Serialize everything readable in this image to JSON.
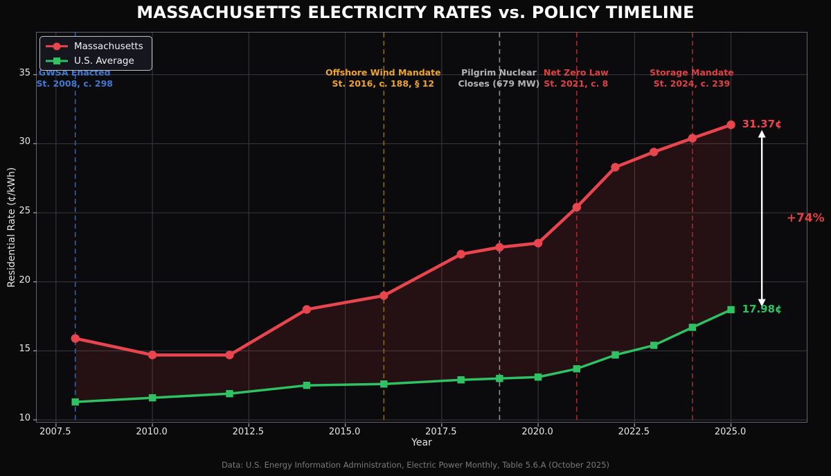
{
  "title": "MASSACHUSETTS ELECTRICITY RATES vs. POLICY TIMELINE",
  "footer": "Data: U.S. Energy Information Administration, Electric Power Monthly, Table 5.6.A (October 2025)",
  "colors": {
    "background": "#0a0a0b",
    "grid": "#3b3b41",
    "spine": "#63636b",
    "tick": "#9a9aa0",
    "massachusetts_red": "#e8464f",
    "us_average_green": "#2fc163",
    "gwsa_blue": "#3d79cf",
    "offshore_orange": "#eda42d",
    "pilgrim_gray": "#b3b3b3",
    "netzero_red": "#dd4242"
  },
  "legend": {
    "items": [
      {
        "label": "Massachusetts",
        "marker": "circle",
        "color": "#e8464f"
      },
      {
        "label": "U.S. Average",
        "marker": "square",
        "color": "#2fc163"
      }
    ]
  },
  "chart_data": {
    "type": "line",
    "title": "MASSACHUSETTS ELECTRICITY RATES vs. POLICY TIMELINE",
    "xlabel": "Year",
    "ylabel": "Residential Rate (¢/kWh)",
    "xlim": [
      2007,
      2027
    ],
    "ylim": [
      9.75,
      38.05
    ],
    "grid": true,
    "legend_position": "upper-left",
    "x_ticks": [
      2007.5,
      2010,
      2012.5,
      2015,
      2017.5,
      2020,
      2022.5,
      2025
    ],
    "x_tick_labels": [
      "2007.5",
      "2010.0",
      "2012.5",
      "2015.0",
      "2017.5",
      "2020.0",
      "2022.5",
      "2025.0"
    ],
    "y_ticks": [
      10,
      15,
      20,
      25,
      30,
      35
    ],
    "y_tick_labels": [
      "10",
      "15",
      "20",
      "25",
      "30",
      "35"
    ],
    "x": [
      2008,
      2010,
      2012,
      2014,
      2016,
      2018,
      2019,
      2020,
      2021,
      2022,
      2023,
      2024,
      2025
    ],
    "series": [
      {
        "name": "Massachusetts",
        "color": "#e8464f",
        "marker": "circle",
        "line_width": 4.5,
        "values": [
          15.9,
          14.7,
          14.7,
          18.0,
          19.0,
          22.0,
          22.5,
          22.8,
          25.4,
          28.3,
          29.4,
          30.4,
          31.37
        ]
      },
      {
        "name": "U.S. Average",
        "color": "#2fc163",
        "marker": "square",
        "line_width": 3.5,
        "values": [
          11.3,
          11.6,
          11.9,
          12.5,
          12.6,
          12.9,
          13.0,
          13.1,
          13.7,
          14.7,
          15.4,
          16.7,
          17.98
        ]
      }
    ],
    "fill_between_color": "rgba(232,64,74,0.12)",
    "end_labels": [
      {
        "text": "31.37¢",
        "value": 31.37,
        "color": "#e8464f"
      },
      {
        "text": "17.98¢",
        "value": 17.98,
        "color": "#2fc163"
      }
    ],
    "policy_events": [
      {
        "year": 2008,
        "line1": "GWSA Enacted",
        "line2": "St. 2008, c. 298",
        "text_color": "#3d79cf",
        "line_color": "#35629f"
      },
      {
        "year": 2016,
        "line1": "Offshore Wind Mandate",
        "line2": "St. 2016, c. 188, § 12",
        "text_color": "#eda42d",
        "line_color": "#8a680f"
      },
      {
        "year": 2019,
        "line1": "Pilgrim Nuclear",
        "line2": "Closes (679 MW)",
        "text_color": "#b3b3b3",
        "line_color": "#8f8f8f"
      },
      {
        "year": 2021,
        "line1": "Net Zero Law",
        "line2": "St. 2021, c. 8",
        "text_color": "#dd4242",
        "line_color": "#a02b2b"
      },
      {
        "year": 2024,
        "line1": "Storage Mandate",
        "line2": "St. 2024, c. 239",
        "text_color": "#dd4242",
        "line_color": "#a02b2b"
      }
    ],
    "gap_annotation": {
      "label": "+74%",
      "label_color": "#dc4040",
      "arrow_color": "#ffffff",
      "arrow_x": 2025.8,
      "arrow_top": 31.0,
      "arrow_bottom": 18.2,
      "label_x": 2026.95,
      "label_y": 24.5
    }
  }
}
